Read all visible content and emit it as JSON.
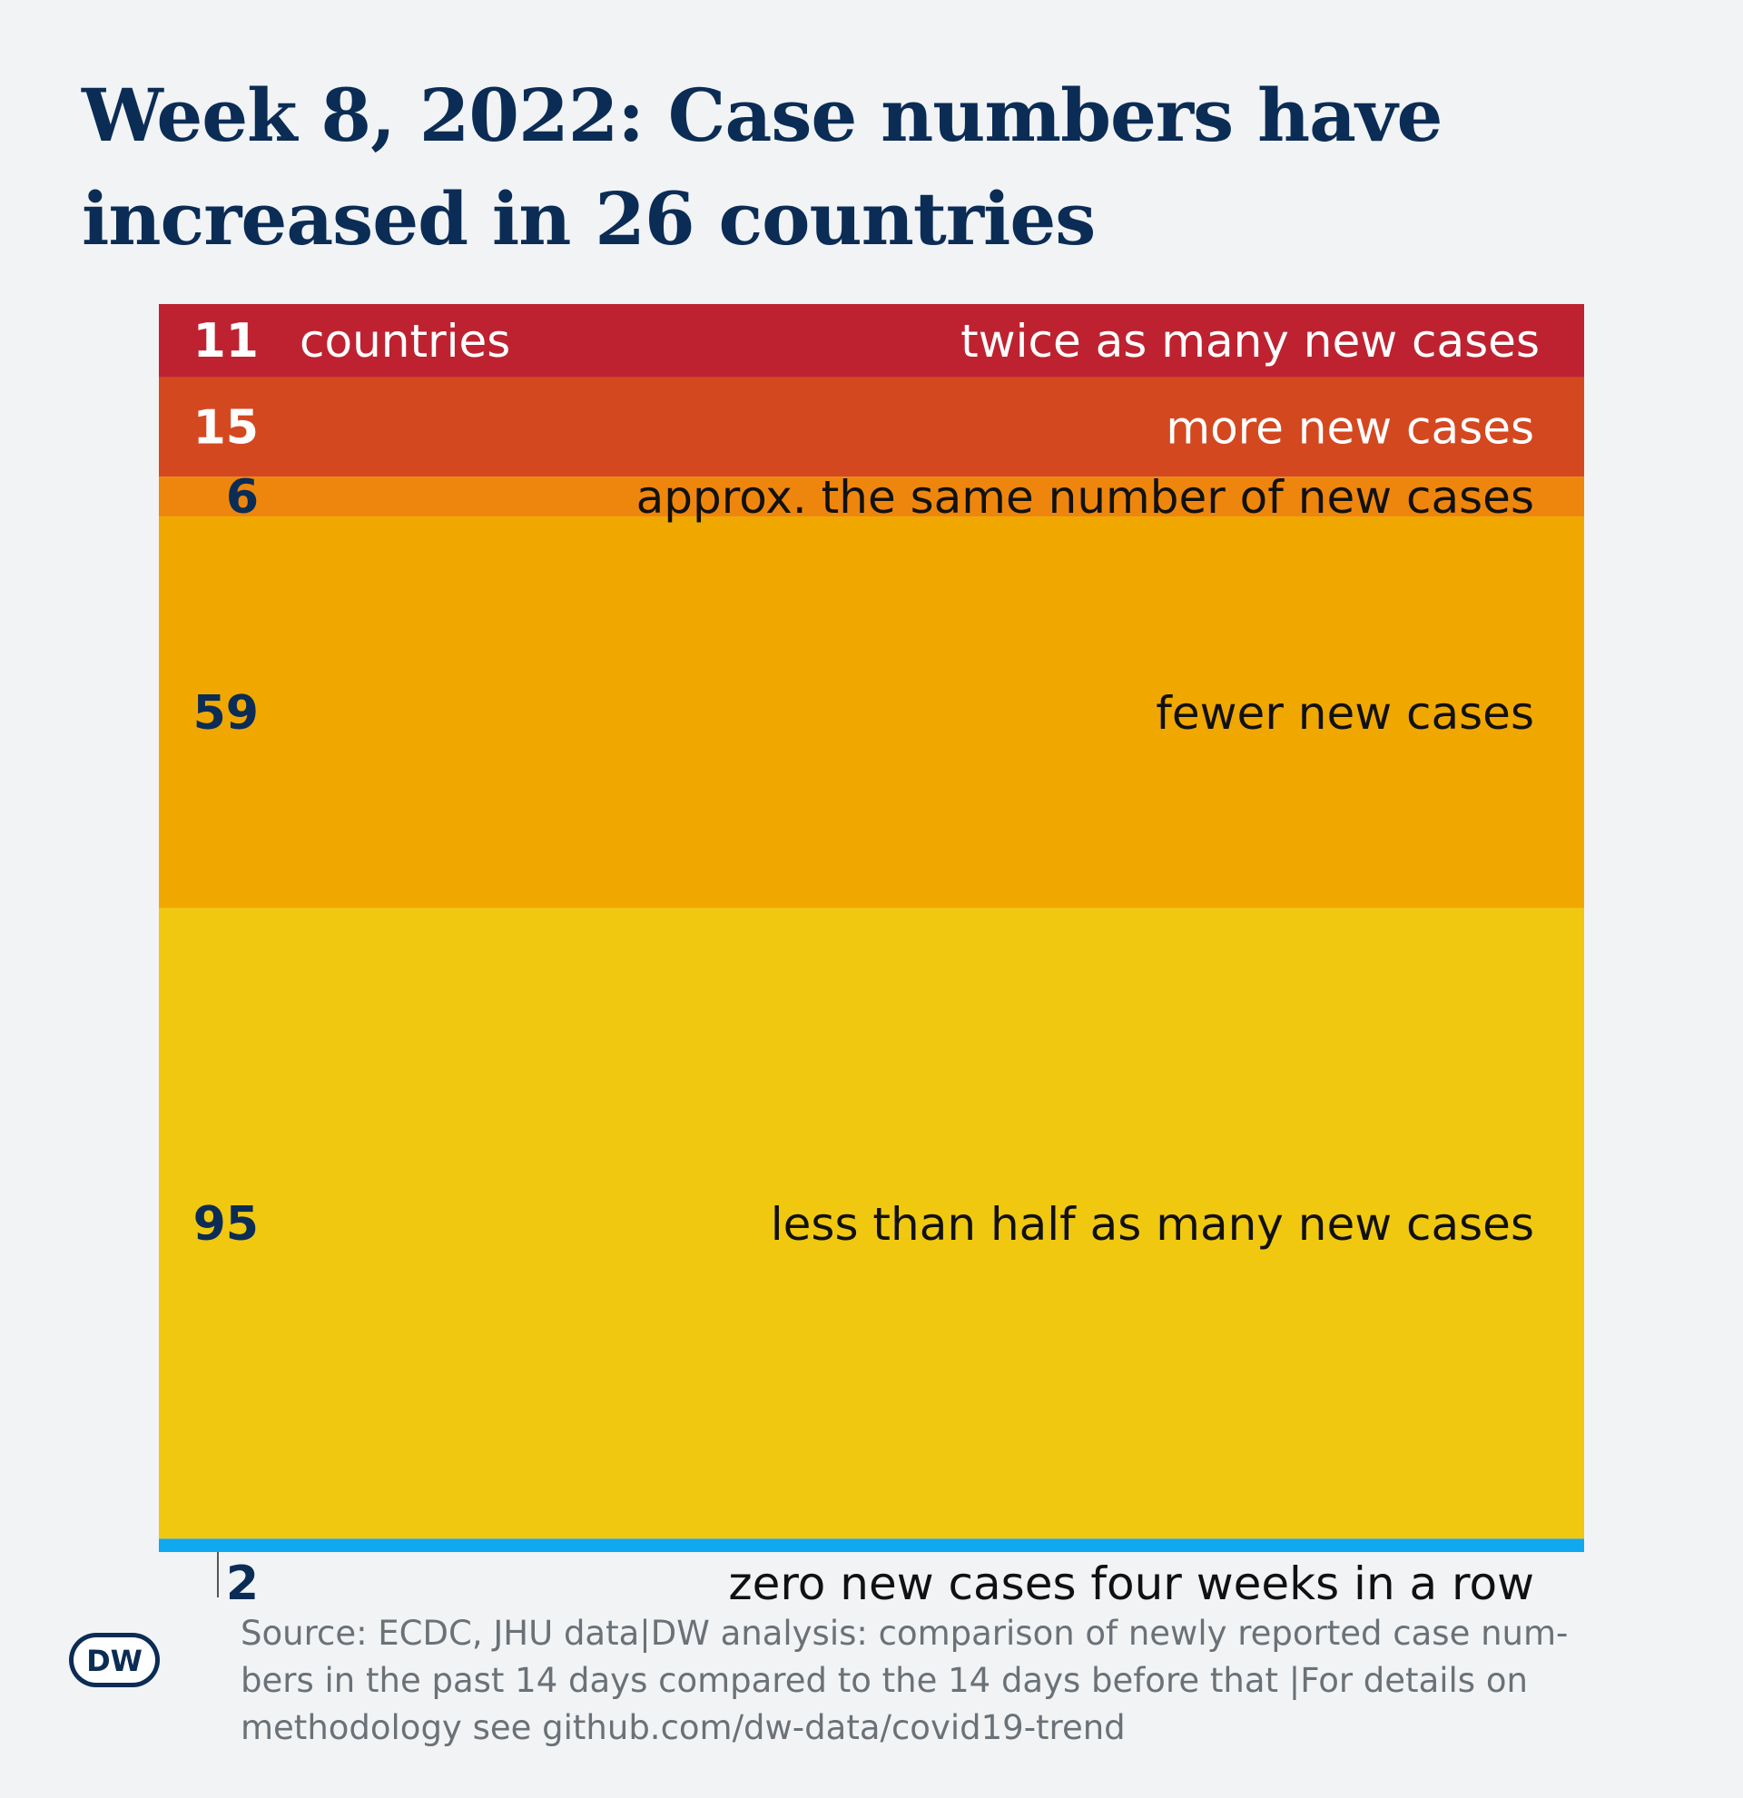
{
  "header": {
    "title": "Week 8, 2022: Case numbers have increased in 26 countries"
  },
  "chart_data": {
    "type": "bar",
    "orientation": "stacked-vertical",
    "unit_label": "countries",
    "categories": [
      "twice as many new cases",
      "more new cases",
      "approx. the same number of new cases",
      "fewer new cases",
      "less than half as many new cases",
      "zero new cases four weeks in a row"
    ],
    "values": [
      11,
      15,
      6,
      59,
      95,
      2
    ],
    "colors": [
      "#be2230",
      "#d44820",
      "#ee860d",
      "#f0a800",
      "#f0c810",
      "#10a8f0"
    ],
    "number_colors": [
      "#ffffff",
      "#ffffff",
      "#0b2c55",
      "#0b2c55",
      "#0b2c55",
      "#0b2c55"
    ],
    "label_colors": [
      "#ffffff",
      "#ffffff",
      "#111111",
      "#111111",
      "#111111",
      "#111111"
    ],
    "title": "Week 8, 2022: Case numbers have increased in 26 countries"
  },
  "footer": {
    "source": "Source: ECDC, JHU data|DW analysis: comparison of newly reported case num-\nbers in the past 14 days compared to the 14 days before that |For details on\nmethodology see github.com/dw-data/covid19-trend",
    "logo_text": "DW"
  }
}
